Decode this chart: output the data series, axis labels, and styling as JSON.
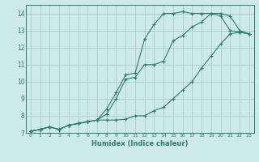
{
  "xlabel": "Humidex (Indice chaleur)",
  "x_values": [
    0,
    1,
    2,
    3,
    4,
    5,
    6,
    7,
    8,
    9,
    10,
    11,
    12,
    13,
    14,
    15,
    16,
    17,
    18,
    19,
    20,
    21,
    22,
    23
  ],
  "line_max": [
    7.1,
    7.2,
    7.35,
    7.2,
    7.45,
    7.55,
    7.65,
    7.75,
    8.4,
    9.35,
    10.4,
    10.5,
    12.5,
    13.35,
    14.0,
    14.0,
    14.1,
    14.0,
    14.0,
    14.0,
    13.85,
    13.0,
    12.9,
    12.8
  ],
  "line_mid": [
    7.1,
    7.2,
    7.35,
    7.2,
    7.45,
    7.55,
    7.65,
    7.75,
    8.1,
    9.0,
    10.15,
    10.25,
    11.0,
    11.0,
    11.2,
    12.4,
    12.7,
    13.2,
    13.5,
    14.0,
    14.0,
    13.85,
    13.0,
    12.8
  ],
  "line_min": [
    7.1,
    7.2,
    7.35,
    7.2,
    7.45,
    7.55,
    7.65,
    7.75,
    7.75,
    7.75,
    7.8,
    8.0,
    8.0,
    8.3,
    8.5,
    9.0,
    9.5,
    10.0,
    10.8,
    11.5,
    12.2,
    12.8,
    12.9,
    12.8
  ],
  "line_color": "#2e7d6e",
  "bg_color": "#cceaea",
  "grid_color": "#aacccc",
  "ylim": [
    7,
    14.5
  ],
  "xlim": [
    -0.5,
    23.5
  ]
}
